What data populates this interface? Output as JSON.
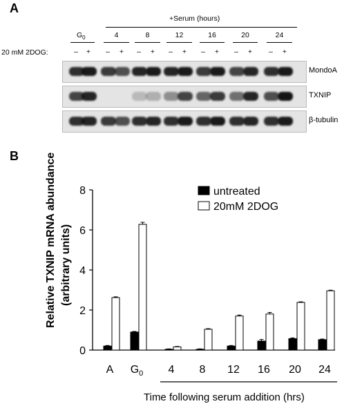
{
  "panel_a": {
    "label": "A",
    "serum_header": "+Serum (hours)",
    "g0_label": "G",
    "g0_subscript": "0",
    "time_points": [
      "4",
      "8",
      "12",
      "16",
      "20",
      "24"
    ],
    "treatment_label": "20 mM 2DOG:",
    "lane_signs": [
      "–",
      "+",
      "–",
      "+",
      "–",
      "+",
      "–",
      "+",
      "–",
      "+",
      "–",
      "+",
      "–",
      "+"
    ],
    "blots": [
      {
        "label": "MondoA",
        "intensities": [
          0.85,
          0.95,
          0.8,
          0.7,
          0.9,
          0.95,
          0.9,
          0.95,
          0.8,
          0.95,
          0.75,
          0.9,
          0.85,
          0.95
        ]
      },
      {
        "label": "TXNIP",
        "intensities": [
          0.75,
          0.9,
          0.0,
          0.0,
          0.2,
          0.25,
          0.4,
          0.75,
          0.6,
          0.8,
          0.55,
          0.9,
          0.7,
          0.98
        ]
      },
      {
        "label": "β-tubulin",
        "intensities": [
          0.85,
          0.9,
          0.8,
          0.7,
          0.85,
          0.9,
          0.85,
          0.95,
          0.85,
          0.95,
          0.85,
          0.9,
          0.85,
          0.95
        ]
      }
    ]
  },
  "panel_b": {
    "label": "B",
    "ylabel_line1": "Relative TXNIP mRNA abundance",
    "ylabel_line2": "(arbitrary units)",
    "xlabel": "Time following serum addition (hrs)",
    "g0_label": "G",
    "g0_subscript": "0"
  },
  "chart_data": {
    "type": "bar",
    "categories": [
      "A",
      "G0",
      "4",
      "8",
      "12",
      "16",
      "20",
      "24"
    ],
    "series": [
      {
        "name": "untreated",
        "color": "#000000",
        "values": [
          0.2,
          0.9,
          0.04,
          0.04,
          0.2,
          0.45,
          0.57,
          0.52
        ],
        "errors": [
          0.03,
          0.03,
          0.02,
          0.02,
          0.03,
          0.08,
          0.04,
          0.03
        ]
      },
      {
        "name": "20mM 2DOG",
        "color": "#ffffff",
        "values": [
          2.62,
          6.28,
          0.16,
          1.04,
          1.7,
          1.8,
          2.38,
          2.96
        ],
        "errors": [
          0.04,
          0.1,
          0.02,
          0.03,
          0.05,
          0.08,
          0.03,
          0.03
        ]
      }
    ],
    "ylim": [
      0,
      8
    ],
    "yticks": [
      0,
      2,
      4,
      6,
      8
    ],
    "legend_position": "top-right"
  }
}
